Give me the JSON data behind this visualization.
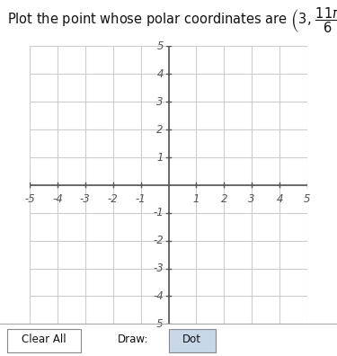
{
  "title_text": "Plot the point whose polar coordinates are",
  "r": 3,
  "theta_num": 11,
  "theta_den": 6,
  "xlim": [
    -5,
    5
  ],
  "ylim": [
    -5,
    5
  ],
  "xticks": [
    -5,
    -4,
    -3,
    -2,
    -1,
    1,
    2,
    3,
    4,
    5
  ],
  "yticks": [
    -5,
    -4,
    -3,
    -2,
    -1,
    1,
    2,
    3,
    4,
    5
  ],
  "grid_color": "#cccccc",
  "axis_color": "#555555",
  "tick_label_color": "#555555",
  "bg_color": "#ffffff",
  "point_color": "#0000cc",
  "point_size": 80,
  "bottom_bar_color": "#f0f0f0",
  "button_clear_color": "#ffffff",
  "button_dot_color": "#c8d8e8"
}
